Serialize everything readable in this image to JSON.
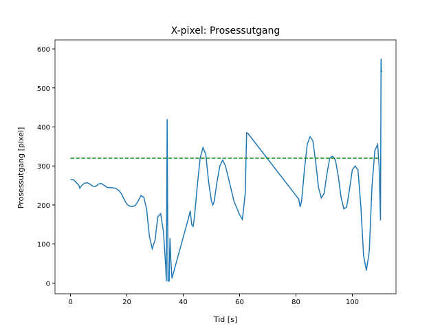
{
  "chart_data": {
    "type": "line",
    "title": "X-pixel: Prosessutgang",
    "xlabel": "Tid [s]",
    "ylabel": "Prosessutgang [pixel]",
    "xlim": [
      -5.5,
      115.5
    ],
    "ylim": [
      -27.5,
      623
    ],
    "xticks": [
      0,
      20,
      40,
      60,
      80,
      100
    ],
    "yticks": [
      0,
      100,
      200,
      300,
      400,
      500,
      600
    ],
    "series": [
      {
        "color": "#1f77b4",
        "dash": "solid",
        "x": [
          0,
          1,
          2,
          3,
          3.3,
          4,
          5,
          6,
          7,
          8,
          9,
          10,
          11,
          12,
          13,
          15,
          16,
          17,
          18,
          19,
          20,
          21,
          22,
          23,
          24,
          25,
          26,
          27,
          28,
          29,
          30,
          31,
          32,
          33,
          33.8,
          34,
          34.3,
          34.6,
          35,
          35.3,
          35.6,
          36,
          38,
          42,
          42.5,
          43,
          43.5,
          44,
          45,
          46,
          47,
          48,
          49,
          50,
          50.5,
          51,
          52,
          53,
          54,
          55,
          56,
          57,
          58,
          60,
          61,
          62,
          62.5,
          63,
          81,
          81.5,
          82,
          83,
          84,
          85,
          86,
          87,
          88,
          89,
          90,
          91,
          92,
          93,
          94,
          95,
          96,
          97,
          98,
          99,
          100,
          101,
          102,
          103,
          104,
          105,
          106,
          107,
          108,
          109,
          109.5,
          110,
          110.2,
          110.3,
          110.5
        ],
        "values": [
          265,
          265,
          258,
          250,
          243,
          250,
          256,
          257,
          253,
          248,
          248,
          254,
          255,
          250,
          245,
          244,
          243,
          238,
          230,
          215,
          202,
          197,
          196,
          199,
          210,
          224,
          220,
          190,
          120,
          88,
          110,
          170,
          178,
          130,
          40,
          5,
          420,
          5,
          5,
          115,
          60,
          12,
          65,
          170,
          185,
          150,
          145,
          170,
          250,
          320,
          347,
          330,
          260,
          210,
          200,
          210,
          260,
          300,
          315,
          300,
          270,
          240,
          210,
          175,
          163,
          230,
          385,
          383,
          215,
          195,
          210,
          290,
          355,
          375,
          365,
          310,
          245,
          218,
          230,
          280,
          320,
          325,
          315,
          275,
          220,
          190,
          195,
          240,
          290,
          300,
          290,
          200,
          70,
          32,
          80,
          250,
          340,
          355,
          300,
          160,
          575,
          545,
          540
        ]
      },
      {
        "color": "#008000",
        "dash": "dashed",
        "x": [
          0,
          110
        ],
        "values": [
          320,
          320
        ]
      }
    ]
  }
}
